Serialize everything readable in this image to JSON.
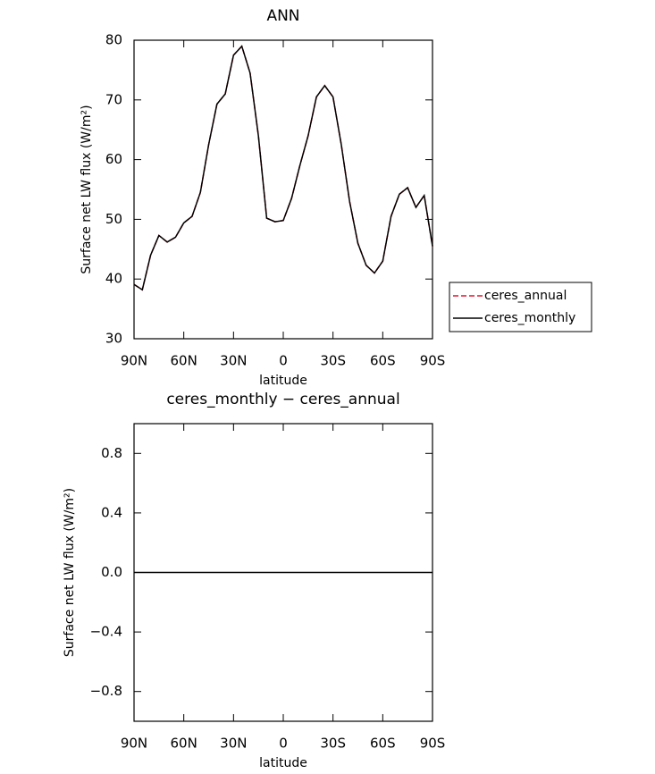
{
  "chart_data": [
    {
      "type": "line",
      "title": "ANN",
      "x_label": "latitude",
      "y_label": "Surface net LW flux (W/m²)",
      "x": [
        90,
        85,
        80,
        75,
        70,
        65,
        60,
        55,
        50,
        45,
        40,
        35,
        30,
        25,
        20,
        15,
        10,
        5,
        0,
        -5,
        -10,
        -15,
        -20,
        -25,
        -30,
        -35,
        -40,
        -45,
        -50,
        -55,
        -60,
        -65,
        -70,
        -75,
        -80,
        -85,
        -90
      ],
      "xlim": [
        90,
        -90
      ],
      "xticks": [
        {
          "value": 90,
          "label": "90N"
        },
        {
          "value": 60,
          "label": "60N"
        },
        {
          "value": 30,
          "label": "30N"
        },
        0,
        {
          "value": -30,
          "label": "30S"
        },
        {
          "value": -60,
          "label": "60S"
        },
        {
          "value": -90,
          "label": "90S"
        }
      ],
      "ylim": [
        30,
        80
      ],
      "yticks": [
        30,
        40,
        50,
        60,
        70,
        80
      ],
      "legend": "right",
      "series": [
        {
          "name": "ceres_annual",
          "color": "#e8102a",
          "dash": true,
          "values": [
            39.1,
            38.2,
            44.0,
            47.3,
            46.2,
            47.0,
            49.4,
            50.5,
            54.5,
            62.5,
            69.3,
            71.0,
            77.5,
            79.0,
            74.5,
            64.0,
            50.2,
            49.6,
            49.8,
            53.5,
            59.0,
            64.0,
            70.5,
            72.4,
            70.5,
            62.5,
            53.0,
            46.0,
            42.3,
            41.0,
            43.0,
            50.5,
            54.2,
            55.3,
            52.0,
            54.0,
            45.5
          ]
        },
        {
          "name": "ceres_monthly",
          "color": "#000000",
          "dash": false,
          "values": [
            39.1,
            38.2,
            44.0,
            47.3,
            46.2,
            47.0,
            49.4,
            50.5,
            54.5,
            62.5,
            69.3,
            71.0,
            77.5,
            79.0,
            74.5,
            64.0,
            50.2,
            49.6,
            49.8,
            53.5,
            59.0,
            64.0,
            70.5,
            72.4,
            70.5,
            62.5,
            53.0,
            46.0,
            42.3,
            41.0,
            43.0,
            50.5,
            54.2,
            55.3,
            52.0,
            54.0,
            45.5
          ]
        }
      ]
    },
    {
      "type": "line",
      "title": "ceres_monthly − ceres_annual",
      "x_label": "latitude",
      "y_label": "Surface net LW flux (W/m²)",
      "x": [
        90,
        85,
        80,
        75,
        70,
        65,
        60,
        55,
        50,
        45,
        40,
        35,
        30,
        25,
        20,
        15,
        10,
        5,
        0,
        -5,
        -10,
        -15,
        -20,
        -25,
        -30,
        -35,
        -40,
        -45,
        -50,
        -55,
        -60,
        -65,
        -70,
        -75,
        -80,
        -85,
        -90
      ],
      "xlim": [
        90,
        -90
      ],
      "xticks": [
        {
          "value": 90,
          "label": "90N"
        },
        {
          "value": 60,
          "label": "60N"
        },
        {
          "value": 30,
          "label": "30N"
        },
        0,
        {
          "value": -30,
          "label": "30S"
        },
        {
          "value": -60,
          "label": "60S"
        },
        {
          "value": -90,
          "label": "90S"
        }
      ],
      "ylim": [
        -1,
        1
      ],
      "yticks": [
        0.8,
        0.4,
        {
          "value": 0,
          "label": "0.0"
        },
        {
          "value": -0.4,
          "label": "−0.4"
        },
        {
          "value": -0.8,
          "label": "−0.8"
        }
      ],
      "series": [
        {
          "color": "#000000",
          "dash": false,
          "values": [
            0,
            0,
            0,
            0,
            0,
            0,
            0,
            0,
            0,
            0,
            0,
            0,
            0,
            0,
            0,
            0,
            0,
            0,
            0,
            0,
            0,
            0,
            0,
            0,
            0,
            0,
            0,
            0,
            0,
            0,
            0,
            0,
            0,
            0,
            0,
            0,
            0
          ]
        }
      ]
    }
  ]
}
